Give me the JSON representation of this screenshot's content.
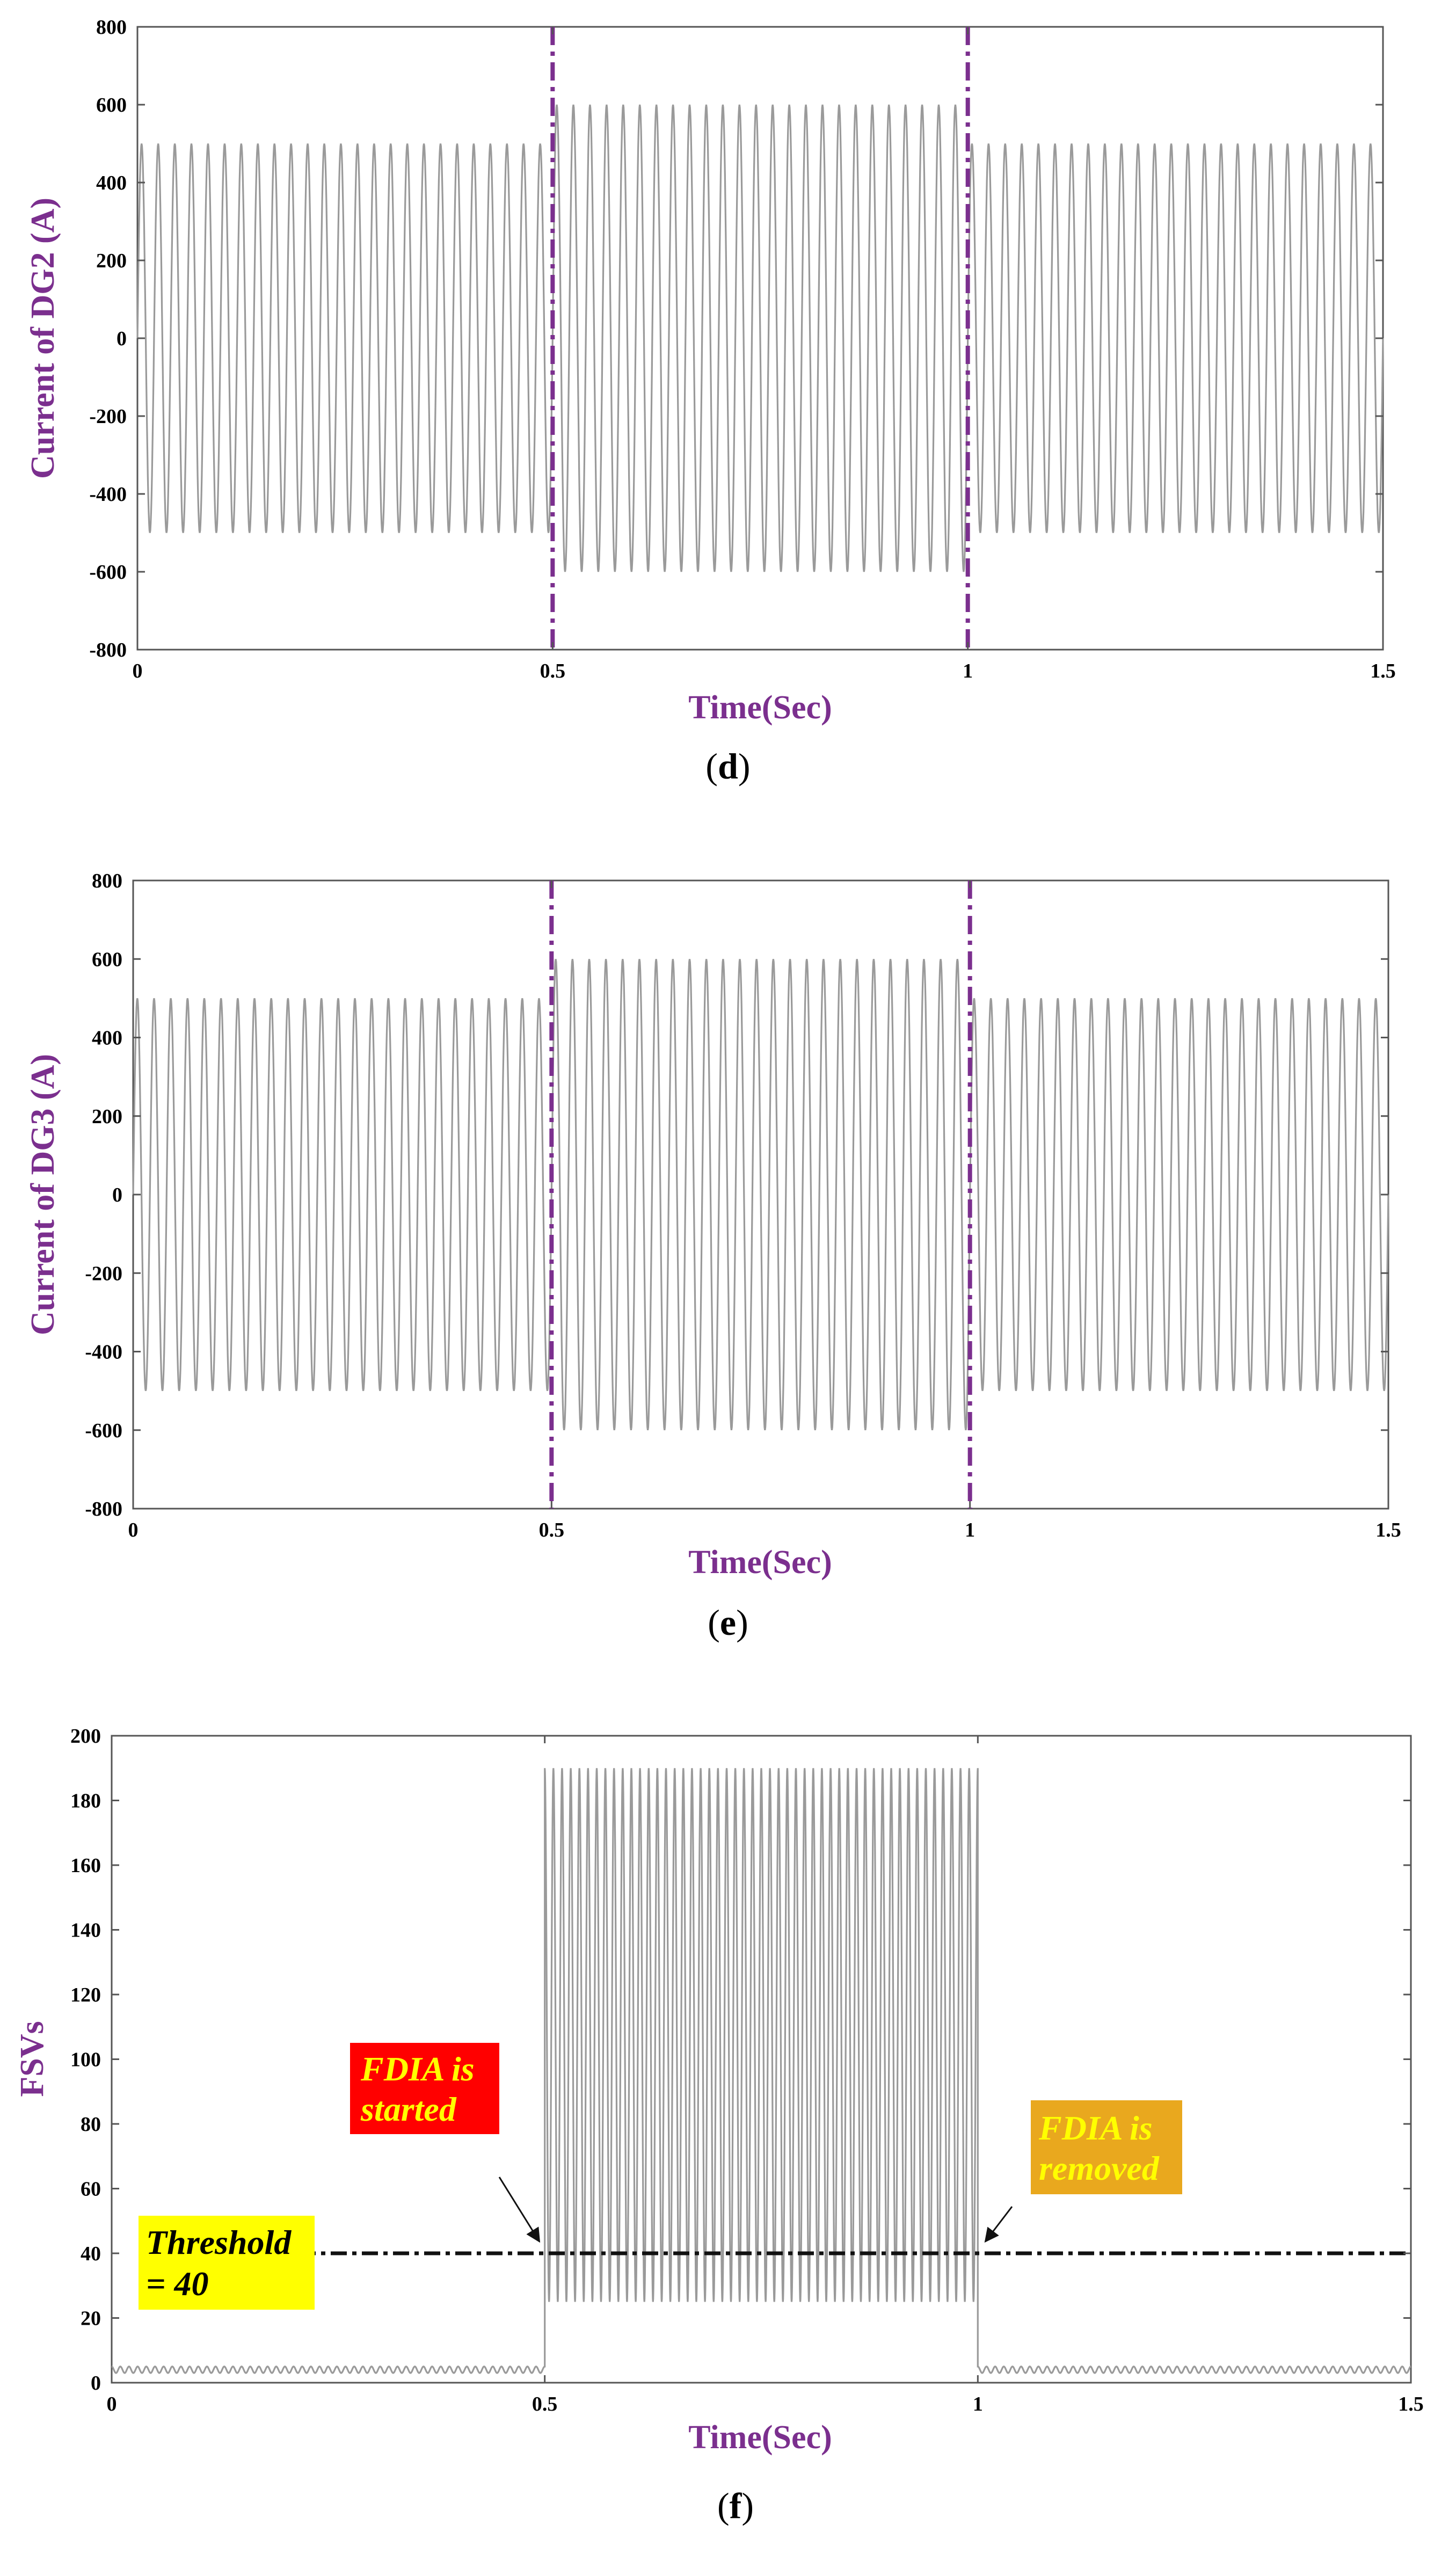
{
  "colors": {
    "accent": "#7B2F8E",
    "signal": "#9a9a9a",
    "threshold": "#111111",
    "callout_started_bg": "#FF0000",
    "callout_started_text": "#FFFF00",
    "callout_removed_bg": "#E9A81E",
    "callout_removed_text": "#FFFF00",
    "callout_threshold_bg": "#FFFF00",
    "callout_threshold_text": "#000000"
  },
  "chart_data": [
    {
      "type": "line",
      "panel_label": {
        "open": "(",
        "letter": "d",
        "close": ")"
      },
      "xlabel": "Time(Sec)",
      "ylabel": "Current of DG2 (A)",
      "xlim": [
        0,
        1.5
      ],
      "ylim": [
        -800,
        800
      ],
      "xticks": [
        0,
        0.5,
        1,
        1.5
      ],
      "xtick_labels": [
        "0",
        "0.5",
        "1",
        "1.5"
      ],
      "yticks": [
        -800,
        -600,
        -400,
        -200,
        0,
        200,
        400,
        600,
        800
      ],
      "ytick_labels": [
        "-800",
        "-600",
        "-400",
        "-200",
        "0",
        "200",
        "400",
        "600",
        "800"
      ],
      "grid": false,
      "markers_x": [
        0.5,
        1
      ],
      "series": [
        {
          "kind": "sinusoid",
          "frequency_hz": 50,
          "segments": [
            {
              "x_start": 0,
              "x_end": 0.5,
              "amplitude": 500
            },
            {
              "x_start": 0.5,
              "x_end": 1,
              "amplitude": 600
            },
            {
              "x_start": 1,
              "x_end": 1.5,
              "amplitude": 500
            }
          ]
        }
      ]
    },
    {
      "type": "line",
      "panel_label": {
        "open": "(",
        "letter": "e",
        "close": ")"
      },
      "xlabel": "Time(Sec)",
      "ylabel": "Current of DG3 (A)",
      "xlim": [
        0,
        1.5
      ],
      "ylim": [
        -800,
        800
      ],
      "xticks": [
        0,
        0.5,
        1,
        1.5
      ],
      "xtick_labels": [
        "0",
        "0.5",
        "1",
        "1.5"
      ],
      "yticks": [
        -800,
        -600,
        -400,
        -200,
        0,
        200,
        400,
        600,
        800
      ],
      "ytick_labels": [
        "-800",
        "-600",
        "-400",
        "-200",
        "0",
        "200",
        "400",
        "600",
        "800"
      ],
      "grid": false,
      "markers_x": [
        0.5,
        1
      ],
      "series": [
        {
          "kind": "sinusoid",
          "frequency_hz": 50,
          "segments": [
            {
              "x_start": 0,
              "x_end": 0.5,
              "amplitude": 500
            },
            {
              "x_start": 0.5,
              "x_end": 1,
              "amplitude": 600
            },
            {
              "x_start": 1,
              "x_end": 1.5,
              "amplitude": 500
            }
          ]
        }
      ]
    },
    {
      "type": "line",
      "panel_label": {
        "open": "(",
        "letter": "f",
        "close": ")"
      },
      "xlabel": "Time(Sec)",
      "ylabel": "FSVs",
      "xlim": [
        0,
        1.5
      ],
      "ylim": [
        0,
        200
      ],
      "xticks": [
        0,
        0.5,
        1,
        1.5
      ],
      "xtick_labels": [
        "0",
        "0.5",
        "1",
        "1.5"
      ],
      "yticks": [
        0,
        20,
        40,
        60,
        80,
        100,
        120,
        140,
        160,
        180,
        200
      ],
      "ytick_labels": [
        "0",
        "20",
        "40",
        "60",
        "80",
        "100",
        "120",
        "140",
        "160",
        "180",
        "200"
      ],
      "grid": false,
      "threshold": 40,
      "series": [
        {
          "kind": "fsv",
          "frequency_hz": 100,
          "segments": [
            {
              "x_start": 0,
              "x_end": 0.5,
              "min": 3,
              "max": 5
            },
            {
              "x_start": 0.5,
              "x_end": 1,
              "min": 25,
              "max": 190
            },
            {
              "x_start": 1,
              "x_end": 1.5,
              "min": 3,
              "max": 5
            }
          ]
        }
      ],
      "annotations": {
        "started": {
          "line1": "FDIA is",
          "line2": "started",
          "x": 0.5,
          "y": 40
        },
        "removed": {
          "line1": "FDIA is",
          "line2": "removed",
          "x": 1,
          "y": 40
        },
        "threshold": {
          "line1": "Threshold",
          "line2": "= 40"
        }
      }
    }
  ]
}
